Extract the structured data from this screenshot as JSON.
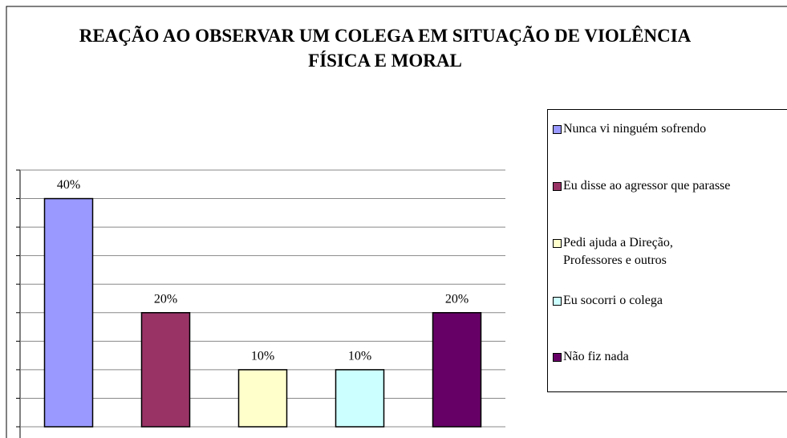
{
  "chart_data": {
    "type": "bar",
    "title": "REAÇÃO AO OBSERVAR UM COLEGA EM SITUAÇÃO DE VIOLÊNCIA FÍSICA E MORAL",
    "series": [
      {
        "name": "Nunca vi ninguém sofrendo",
        "color": "#9999ff",
        "values": [
          40
        ],
        "value_labels": [
          "40%"
        ]
      },
      {
        "name": "Eu disse ao agressor que parasse",
        "color": "#993366",
        "values": [
          20
        ],
        "value_labels": [
          "20%"
        ]
      },
      {
        "name": "Pedi ajuda a Direção, Professores e outros",
        "color": "#ffffcc",
        "values": [
          10
        ],
        "value_labels": [
          "10%"
        ]
      },
      {
        "name": "Eu socorri o colega",
        "color": "#ccffff",
        "values": [
          10
        ],
        "value_labels": [
          "10%"
        ]
      },
      {
        "name": "Não fiz nada",
        "color": "#660066",
        "values": [
          20
        ],
        "value_labels": [
          "20%"
        ]
      }
    ],
    "ylim": [
      0,
      45
    ],
    "yticks": [
      0,
      5,
      10,
      15,
      20,
      25,
      30,
      35,
      40,
      45
    ],
    "grid": true,
    "legend": "right"
  }
}
